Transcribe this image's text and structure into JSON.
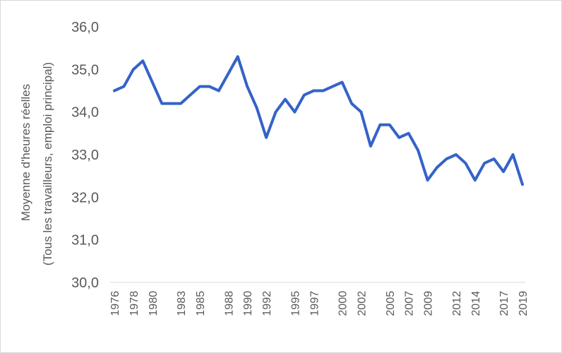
{
  "chart_data": {
    "type": "line",
    "ylabel_line1": "Moyenne d'heures  réelles",
    "ylabel_line2": "(Tous les travailleurs, emploi principal)",
    "ylim": [
      30,
      36
    ],
    "yticks": [
      "30,0",
      "31,0",
      "32,0",
      "33,0",
      "34,0",
      "35,0",
      "36,0"
    ],
    "xtick_labels": [
      "1976",
      "1978",
      "1980",
      "1983",
      "1985",
      "1988",
      "1990",
      "1992",
      "1995",
      "1997",
      "2000",
      "2002",
      "2005",
      "2007",
      "2009",
      "2012",
      "2014",
      "2017",
      "2019"
    ],
    "grid": false,
    "colors": {
      "line": "#3463c8"
    },
    "x": [
      1976,
      1977,
      1978,
      1979,
      1980,
      1981,
      1982,
      1983,
      1984,
      1985,
      1986,
      1987,
      1988,
      1989,
      1990,
      1991,
      1992,
      1993,
      1994,
      1995,
      1996,
      1997,
      1998,
      1999,
      2000,
      2001,
      2002,
      2003,
      2004,
      2005,
      2006,
      2007,
      2008,
      2009,
      2010,
      2011,
      2012,
      2013,
      2014,
      2015,
      2016,
      2017,
      2018,
      2019
    ],
    "series": [
      {
        "values": [
          34.5,
          34.6,
          35.0,
          35.2,
          34.7,
          34.2,
          34.2,
          34.2,
          34.4,
          34.6,
          34.6,
          34.5,
          34.9,
          35.3,
          34.6,
          34.1,
          33.4,
          34.0,
          34.3,
          34.0,
          34.4,
          34.5,
          34.5,
          34.6,
          34.7,
          34.2,
          34.0,
          33.2,
          33.7,
          33.7,
          33.4,
          33.5,
          33.1,
          32.4,
          32.7,
          32.9,
          33.0,
          32.8,
          32.4,
          32.8,
          32.9,
          32.6,
          33.0,
          32.3
        ]
      }
    ]
  }
}
